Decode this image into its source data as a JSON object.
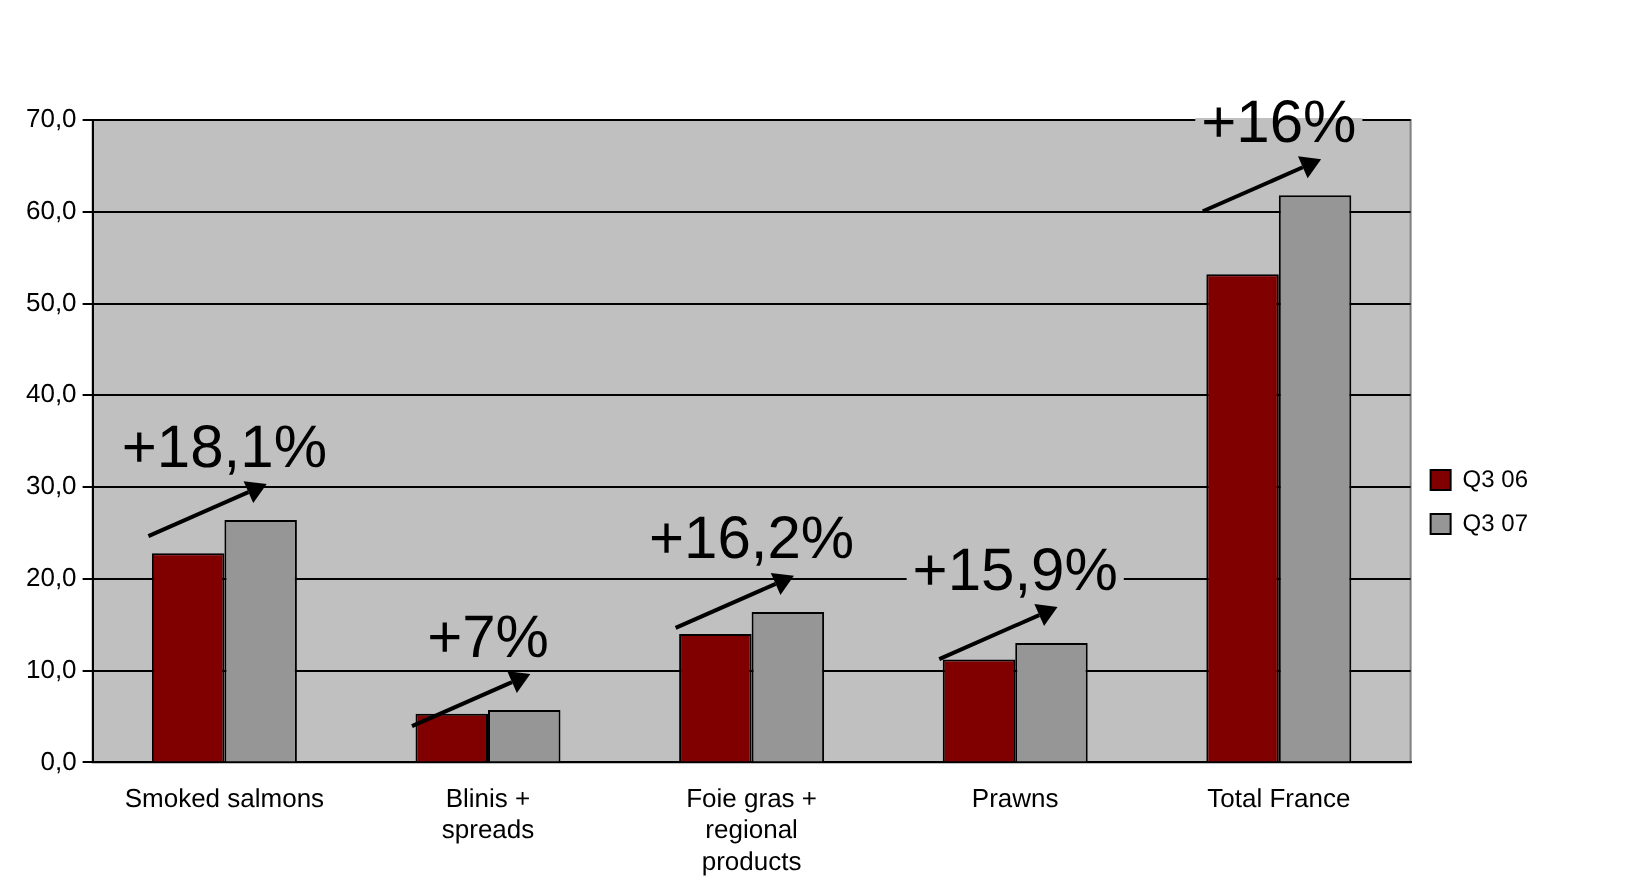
{
  "chart_data": {
    "type": "bar",
    "categories": [
      "Smoked salmons",
      "Blinis + spreads",
      "Foie gras + regional products",
      "Prawns",
      "Total France"
    ],
    "series": [
      {
        "name": "Q3 06",
        "color": "#800000",
        "values": [
          22.8,
          5.3,
          14.0,
          11.2,
          53.2
        ]
      },
      {
        "name": "Q3 07",
        "color": "#969696",
        "values": [
          26.4,
          5.7,
          16.4,
          13.0,
          61.8
        ]
      }
    ],
    "ylim": [
      0,
      70
    ],
    "yticks": [
      {
        "value": 0,
        "label": "0,0"
      },
      {
        "value": 10,
        "label": "10,0"
      },
      {
        "value": 20,
        "label": "20,0"
      },
      {
        "value": 30,
        "label": "30,0"
      },
      {
        "value": 40,
        "label": "40,0"
      },
      {
        "value": 50,
        "label": "50,0"
      },
      {
        "value": 60,
        "label": "60,0"
      },
      {
        "value": 70,
        "label": "70,0"
      }
    ],
    "annotations": [
      {
        "text": "+18,1%",
        "x": "Smoked salmons",
        "y": 26.4
      },
      {
        "text": "+7%",
        "x": "Blinis + spreads",
        "y": 5.7
      },
      {
        "text": "+16,2%",
        "x": "Foie gras + regional products",
        "y": 16.4
      },
      {
        "text": "+15,9%",
        "x": "Prawns",
        "y": 13.0
      },
      {
        "text": "+16%",
        "x": "Total France",
        "y": 61.8
      }
    ],
    "grid": "y",
    "legend": "right"
  }
}
